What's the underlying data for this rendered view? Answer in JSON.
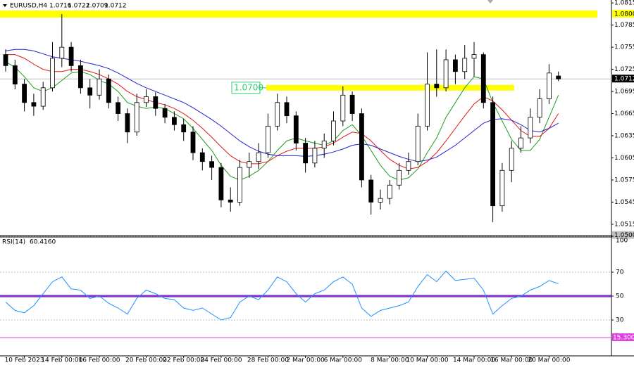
{
  "chart_data": {
    "type": "candlestick",
    "title": "EURUSD,H4",
    "categories": [
      null,
      null,
      "10 Feb 2023",
      null,
      null,
      null,
      "14 Feb 00:00",
      null,
      null,
      null,
      "16 Feb 00:00",
      null,
      null,
      null,
      null,
      "20 Feb 00:00",
      null,
      null,
      null,
      "22 Feb 00:00",
      null,
      null,
      null,
      "24 Feb 00:00",
      null,
      null,
      null,
      null,
      "28 Feb 00:00",
      null,
      null,
      null,
      "2 Mar 00:00",
      null,
      null,
      null,
      "6 Mar 00:00",
      null,
      null,
      null,
      null,
      "8 Mar 00:00",
      null,
      null,
      null,
      "10 Mar 00:00",
      null,
      null,
      null,
      null,
      "14 Mar 00:00",
      null,
      null,
      null,
      "16 Mar 00:00",
      null,
      null,
      null,
      "20 Mar 00:00",
      null
    ],
    "open": [
      1.0745,
      1.073,
      1.0705,
      1.068,
      1.0675,
      1.07,
      1.074,
      1.0755,
      1.073,
      1.07,
      1.069,
      1.0712,
      1.068,
      1.0665,
      1.064,
      1.068,
      1.0688,
      1.0672,
      1.066,
      1.065,
      1.064,
      1.0612,
      1.06,
      1.0592,
      1.0548,
      1.0545,
      1.0592,
      1.06,
      1.0612,
      1.0648,
      1.068,
      1.0662,
      1.0625,
      1.0598,
      1.0618,
      1.0628,
      1.0655,
      1.069,
      1.0665,
      1.0575,
      1.0545,
      1.055,
      1.0568,
      1.0588,
      1.06,
      1.0648,
      1.0705,
      1.07,
      1.0738,
      1.0722,
      1.074,
      1.0745,
      1.068,
      1.054,
      1.0588,
      1.0618,
      1.0632,
      1.066,
      1.0685,
      1.0716
    ],
    "high": [
      1.0752,
      1.0738,
      1.0712,
      1.0692,
      1.0708,
      1.0762,
      1.08,
      1.0762,
      1.0738,
      1.0712,
      1.0725,
      1.0718,
      1.0688,
      1.0672,
      1.0692,
      1.0698,
      1.0694,
      1.0678,
      1.0668,
      1.0658,
      1.0648,
      1.0618,
      1.0608,
      1.0598,
      1.0565,
      1.0602,
      1.0612,
      1.0625,
      1.0665,
      1.0692,
      1.0688,
      1.0668,
      1.0632,
      1.0628,
      1.0638,
      1.0668,
      1.0702,
      1.0695,
      1.0672,
      1.0582,
      1.0562,
      1.0575,
      1.0598,
      1.0612,
      1.0665,
      1.0748,
      1.0752,
      1.0752,
      1.0745,
      1.0758,
      1.0762,
      1.0748,
      1.0688,
      1.0598,
      1.0628,
      1.0648,
      1.0672,
      1.0698,
      1.0732,
      1.0722
    ],
    "low": [
      1.0722,
      1.0698,
      1.0668,
      1.0662,
      1.067,
      1.0695,
      1.0728,
      1.0722,
      1.0692,
      1.0672,
      1.0684,
      1.0672,
      1.0655,
      1.0625,
      1.0635,
      1.0674,
      1.0662,
      1.0652,
      1.0642,
      1.0628,
      1.0602,
      1.0588,
      1.0575,
      1.0538,
      1.0532,
      1.054,
      1.0578,
      1.059,
      1.0605,
      1.0642,
      1.0652,
      1.0615,
      1.0585,
      1.0592,
      1.0605,
      1.0622,
      1.0648,
      1.0655,
      1.0565,
      1.0528,
      1.0535,
      1.0542,
      1.0562,
      1.0582,
      1.0595,
      1.0642,
      1.0688,
      1.0695,
      1.0705,
      1.0712,
      1.0715,
      1.0672,
      1.0518,
      1.0532,
      1.0572,
      1.0612,
      1.0625,
      1.0652,
      1.0678,
      1.0709
    ],
    "close": [
      1.073,
      1.0705,
      1.068,
      1.0675,
      1.07,
      1.074,
      1.0755,
      1.073,
      1.07,
      1.069,
      1.0712,
      1.068,
      1.0665,
      1.064,
      1.068,
      1.0688,
      1.0672,
      1.066,
      1.065,
      1.064,
      1.0612,
      1.06,
      1.0592,
      1.0548,
      1.0545,
      1.0592,
      1.06,
      1.0612,
      1.0648,
      1.068,
      1.0662,
      1.0625,
      1.0598,
      1.0618,
      1.0628,
      1.0655,
      1.069,
      1.0665,
      1.0575,
      1.0545,
      1.055,
      1.0568,
      1.0588,
      1.06,
      1.0648,
      1.0705,
      1.07,
      1.0738,
      1.0722,
      1.074,
      1.0745,
      1.068,
      1.054,
      1.0588,
      1.0618,
      1.0632,
      1.066,
      1.0685,
      1.072,
      1.0712
    ],
    "series": [
      {
        "color": "#1f9e1f",
        "values": [
          1.0735,
          1.0728,
          1.0715,
          1.07,
          1.0695,
          1.07,
          1.071,
          1.072,
          1.0722,
          1.0718,
          1.071,
          1.0705,
          1.0695,
          1.068,
          1.0675,
          1.0672,
          1.0674,
          1.0672,
          1.0665,
          1.0658,
          1.0645,
          1.063,
          1.0615,
          1.0595,
          1.058,
          1.0575,
          1.058,
          1.0588,
          1.06,
          1.0615,
          1.0628,
          1.0632,
          1.0628,
          1.0625,
          1.0622,
          1.0628,
          1.0642,
          1.065,
          1.0635,
          1.0615,
          1.0595,
          1.058,
          1.0575,
          1.0578,
          1.059,
          1.0612,
          1.0632,
          1.066,
          1.068,
          1.07,
          1.0715,
          1.0712,
          1.068,
          1.0655,
          1.063,
          1.0615,
          1.0615,
          1.063,
          1.066,
          1.069
        ]
      },
      {
        "color": "#e01818",
        "values": [
          1.0745,
          1.0745,
          1.074,
          1.0732,
          1.0725,
          1.0722,
          1.0722,
          1.0725,
          1.0725,
          1.0722,
          1.0718,
          1.0712,
          1.0705,
          1.0695,
          1.0688,
          1.0684,
          1.068,
          1.0677,
          1.0672,
          1.0665,
          1.0656,
          1.0645,
          1.0633,
          1.062,
          1.0608,
          1.06,
          1.0597,
          1.0597,
          1.06,
          1.0608,
          1.0614,
          1.0618,
          1.0618,
          1.0618,
          1.062,
          1.0625,
          1.0633,
          1.064,
          1.0638,
          1.0628,
          1.0615,
          1.0603,
          1.0595,
          1.059,
          1.0592,
          1.06,
          1.0612,
          1.0628,
          1.0645,
          1.0662,
          1.0678,
          1.0688,
          1.0682,
          1.067,
          1.0656,
          1.0642,
          1.0634,
          1.0634,
          1.0645,
          1.0665
        ]
      },
      {
        "color": "#2222cc",
        "values": [
          1.075,
          1.0752,
          1.0752,
          1.075,
          1.0746,
          1.0742,
          1.074,
          1.0738,
          1.0736,
          1.0733,
          1.073,
          1.0726,
          1.072,
          1.0713,
          1.0706,
          1.07,
          1.0695,
          1.069,
          1.0685,
          1.068,
          1.0673,
          1.0665,
          1.0657,
          1.0648,
          1.0638,
          1.0628,
          1.062,
          1.0614,
          1.061,
          1.0608,
          1.0608,
          1.0608,
          1.0607,
          1.0608,
          1.061,
          1.0613,
          1.0617,
          1.0622,
          1.0624,
          1.0622,
          1.0617,
          1.0612,
          1.0607,
          1.0603,
          1.06,
          1.0602,
          1.0606,
          1.0614,
          1.0622,
          1.0632,
          1.0642,
          1.0652,
          1.0657,
          1.0658,
          1.0656,
          1.065,
          1.0642,
          1.064,
          1.0645,
          1.0652
        ]
      }
    ],
    "levels": [
      {
        "value": 1.08,
        "label": "1.0800"
      },
      {
        "value": 1.07,
        "label": "1.0700"
      }
    ],
    "ylim": [
      1.05,
      1.0819
    ],
    "yticks": [
      1.0815,
      1.0785,
      1.0755,
      1.0725,
      1.0695,
      1.0665,
      1.0635,
      1.0605,
      1.0575,
      1.0545,
      1.0515,
      {
        "value": 1.05,
        "label": "1.0500"
      }
    ],
    "indicator": {
      "type": "line",
      "title": "RSI(14)",
      "subtitle": "60.4160",
      "color": "#1e90ff",
      "values": [
        45,
        38,
        36,
        42,
        52,
        62,
        66,
        56,
        55,
        48,
        50,
        44,
        40,
        35,
        48,
        55,
        52,
        48,
        47,
        40,
        38,
        40,
        35,
        30,
        32,
        45,
        50,
        47,
        55,
        66,
        62,
        52,
        45,
        52,
        55,
        62,
        66,
        60,
        40,
        33,
        38,
        40,
        42,
        45,
        58,
        68,
        62,
        71,
        63,
        64,
        65,
        55,
        35,
        42,
        48,
        50,
        55,
        58,
        63,
        60.416
      ],
      "ylim": [
        0,
        100
      ],
      "yticks": [
        100,
        70,
        50,
        30
      ],
      "levels": [
        50,
        {
          "value": 15.3,
          "label": "15.3000"
        }
      ]
    }
  }
}
